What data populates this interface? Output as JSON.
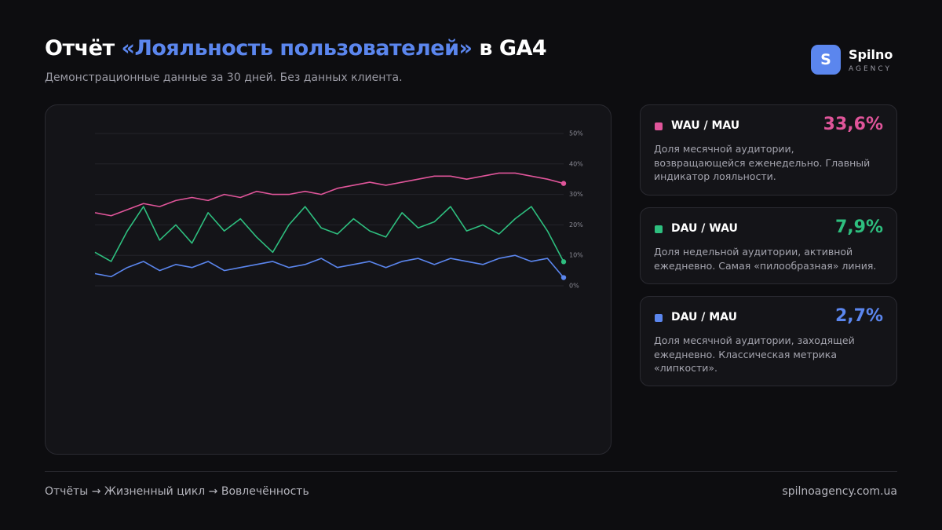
{
  "header": {
    "title_parts": [
      "Отчёт ",
      "«Лояльность пользователей»",
      " в GA4"
    ],
    "subtitle": "Демонстрационные данные за 30 дней. Без данных клиента.",
    "logo_letter": "S",
    "brand": "Spilno",
    "brand_sub": "AGENCY"
  },
  "chart_data": {
    "type": "line",
    "ylim": [
      0,
      50
    ],
    "yticks": [
      {
        "value": 0,
        "label": "0%"
      },
      {
        "value": 10,
        "label": "10%"
      },
      {
        "value": 20,
        "label": "20%"
      },
      {
        "value": 30,
        "label": "30%"
      },
      {
        "value": 40,
        "label": "40%"
      },
      {
        "value": 50,
        "label": "50%"
      }
    ],
    "grid": true,
    "series": [
      {
        "name": "WAU / MAU",
        "color": "#e0559a",
        "label": "33,6%",
        "description": "Доля месячной аудитории, возвращающейся еженедельно. Главный индикатор лояльности.",
        "values": [
          24,
          23,
          25,
          27,
          26,
          28,
          29,
          28,
          30,
          29,
          31,
          30,
          30,
          31,
          30,
          32,
          33,
          34,
          33,
          34,
          35,
          36,
          36,
          35,
          36,
          37,
          37,
          36,
          35,
          33.6
        ]
      },
      {
        "name": "DAU / WAU",
        "color": "#2ebf7f",
        "label": "7,9%",
        "description": "Доля недельной аудитории, активной ежедневно. Самая «пилообразная» линия.",
        "values": [
          11,
          8,
          18,
          26,
          15,
          20,
          14,
          24,
          18,
          22,
          16,
          11,
          20,
          26,
          19,
          17,
          22,
          18,
          16,
          24,
          19,
          21,
          26,
          18,
          20,
          17,
          22,
          26,
          18,
          7.9
        ]
      },
      {
        "name": "DAU / MAU",
        "color": "#5b86ee",
        "label": "2,7%",
        "description": "Доля месячной аудитории, заходящей ежедневно. Классическая метрика «липкости».",
        "values": [
          4,
          3,
          6,
          8,
          5,
          7,
          6,
          8,
          5,
          6,
          7,
          8,
          6,
          7,
          9,
          6,
          7,
          8,
          6,
          8,
          9,
          7,
          9,
          8,
          7,
          9,
          10,
          8,
          9,
          2.7
        ]
      }
    ]
  },
  "footer": {
    "breadcrumb": "Отчёты → Жизненный цикл → Вовлечённость",
    "site": "spilnoagency.com.ua"
  }
}
